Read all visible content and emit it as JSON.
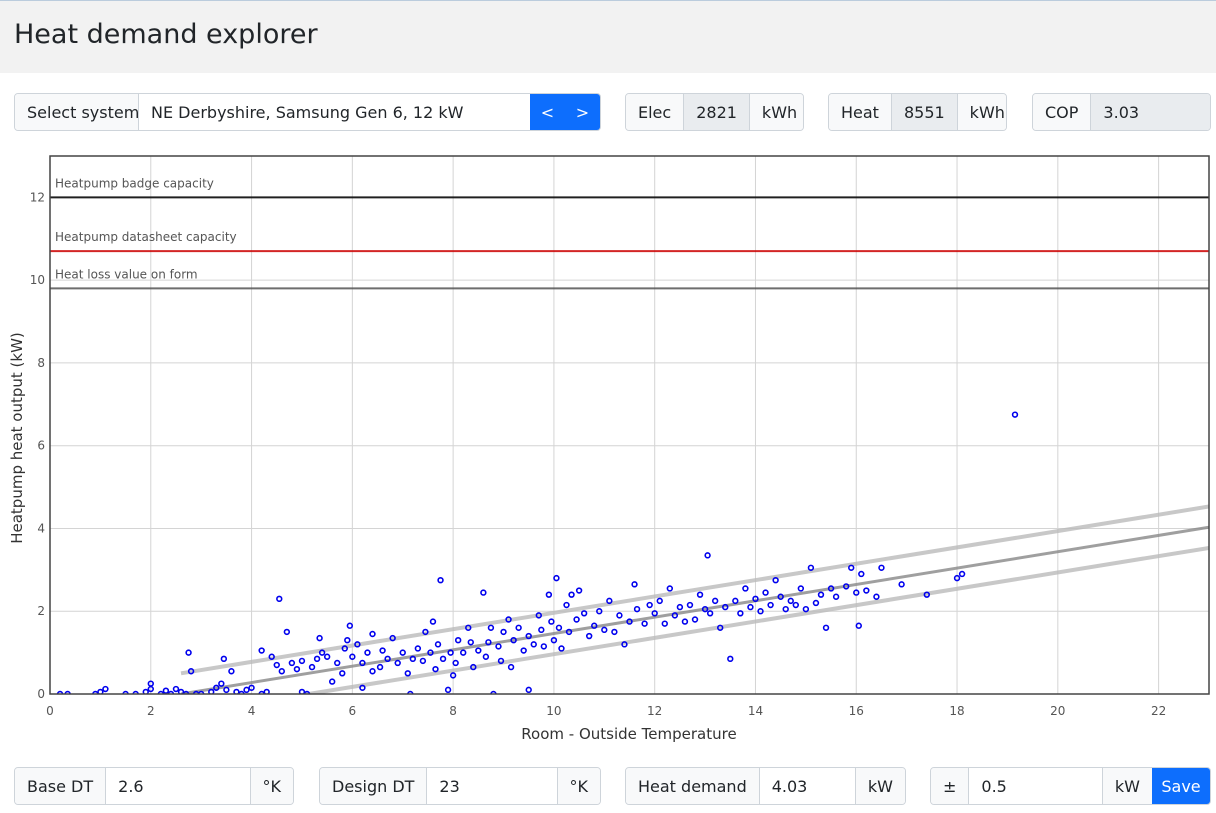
{
  "header": {
    "title": "Heat demand explorer"
  },
  "system": {
    "label": "Select system",
    "value": "NE Derbyshire, Samsung Gen 6, 12 kW",
    "prev": "<",
    "next": ">"
  },
  "stats": {
    "elec_label": "Elec",
    "elec_value": "2821",
    "elec_unit": "kWh",
    "heat_label": "Heat",
    "heat_value": "8551",
    "heat_unit": "kWh",
    "cop_label": "COP",
    "cop_value": "3.03"
  },
  "controls": {
    "base_dt_label": "Base DT",
    "base_dt_value": "2.6",
    "base_dt_unit": "°K",
    "design_dt_label": "Design DT",
    "design_dt_value": "23",
    "design_dt_unit": "°K",
    "heat_demand_label": "Heat demand",
    "heat_demand_value": "4.03",
    "heat_demand_unit": "kW",
    "tolerance_label": "±",
    "tolerance_value": "0.5",
    "tolerance_unit": "kW",
    "save_label": "Save"
  },
  "colors": {
    "accent": "#0d6efd",
    "points": "#0000ee",
    "badge_line": "#000000",
    "datasheet_line": "#cc0000",
    "heatloss_line": "#555555",
    "fit_line": "#888888",
    "band_line": "#bbbbbb"
  },
  "chart_data": {
    "type": "scatter",
    "title": "",
    "xlabel": "Room - Outside Temperature",
    "ylabel": "Heatpump heat output (kW)",
    "xlim": [
      0,
      23
    ],
    "ylim": [
      0,
      13
    ],
    "xticks": [
      0,
      2,
      4,
      6,
      8,
      10,
      12,
      14,
      16,
      18,
      20,
      22
    ],
    "yticks": [
      0,
      2,
      4,
      6,
      8,
      10,
      12
    ],
    "grid": true,
    "reference_lines": [
      {
        "label": "Heatpump badge capacity",
        "y": 12.0,
        "color": "#000000"
      },
      {
        "label": "Heatpump datasheet capacity",
        "y": 10.7,
        "color": "#cc0000"
      },
      {
        "label": "Heat loss value on form",
        "y": 9.8,
        "color": "#555555"
      }
    ],
    "fit_line": {
      "x": [
        2.6,
        23
      ],
      "y": [
        0,
        4.03
      ]
    },
    "band_upper": {
      "x": [
        2.6,
        23
      ],
      "y": [
        0.5,
        4.53
      ]
    },
    "band_lower": {
      "x": [
        2.6,
        23
      ],
      "y": [
        -0.5,
        3.53
      ]
    },
    "points": [
      [
        0.2,
        0.0
      ],
      [
        0.35,
        0.0
      ],
      [
        0.9,
        0.0
      ],
      [
        1.0,
        0.05
      ],
      [
        1.1,
        0.12
      ],
      [
        1.5,
        0.0
      ],
      [
        1.7,
        0.0
      ],
      [
        1.9,
        0.05
      ],
      [
        2.0,
        0.12
      ],
      [
        2.0,
        0.25
      ],
      [
        2.2,
        0.0
      ],
      [
        2.3,
        0.08
      ],
      [
        2.4,
        0.0
      ],
      [
        2.5,
        0.12
      ],
      [
        2.6,
        0.05
      ],
      [
        2.7,
        0.0
      ],
      [
        2.75,
        1.0
      ],
      [
        2.8,
        0.55
      ],
      [
        2.9,
        0.0
      ],
      [
        3.0,
        0.0
      ],
      [
        3.2,
        0.05
      ],
      [
        3.3,
        0.15
      ],
      [
        3.4,
        0.25
      ],
      [
        3.5,
        0.1
      ],
      [
        3.45,
        0.85
      ],
      [
        3.6,
        0.55
      ],
      [
        3.7,
        0.05
      ],
      [
        3.8,
        0.0
      ],
      [
        3.9,
        0.1
      ],
      [
        4.0,
        0.15
      ],
      [
        4.2,
        0.0
      ],
      [
        4.3,
        0.05
      ],
      [
        4.2,
        1.05
      ],
      [
        4.4,
        0.9
      ],
      [
        4.5,
        0.7
      ],
      [
        4.55,
        2.3
      ],
      [
        4.6,
        0.55
      ],
      [
        4.7,
        1.5
      ],
      [
        4.8,
        0.75
      ],
      [
        4.9,
        0.6
      ],
      [
        5.0,
        0.05
      ],
      [
        5.0,
        0.8
      ],
      [
        5.1,
        0.0
      ],
      [
        5.2,
        0.65
      ],
      [
        5.3,
        0.85
      ],
      [
        5.4,
        1.0
      ],
      [
        5.35,
        1.35
      ],
      [
        5.5,
        0.9
      ],
      [
        5.6,
        0.3
      ],
      [
        5.7,
        0.75
      ],
      [
        5.8,
        0.5
      ],
      [
        5.85,
        1.1
      ],
      [
        5.9,
        1.3
      ],
      [
        5.95,
        1.65
      ],
      [
        6.0,
        0.9
      ],
      [
        6.1,
        1.2
      ],
      [
        6.2,
        0.75
      ],
      [
        6.2,
        0.15
      ],
      [
        6.3,
        1.0
      ],
      [
        6.4,
        0.55
      ],
      [
        6.4,
        1.45
      ],
      [
        6.55,
        0.65
      ],
      [
        6.6,
        1.05
      ],
      [
        6.7,
        0.85
      ],
      [
        6.8,
        1.35
      ],
      [
        6.9,
        0.75
      ],
      [
        7.0,
        1.0
      ],
      [
        7.1,
        0.5
      ],
      [
        7.15,
        0.0
      ],
      [
        7.2,
        0.85
      ],
      [
        7.3,
        1.1
      ],
      [
        7.4,
        0.8
      ],
      [
        7.45,
        1.5
      ],
      [
        7.55,
        1.0
      ],
      [
        7.6,
        1.75
      ],
      [
        7.65,
        0.6
      ],
      [
        7.7,
        1.2
      ],
      [
        7.75,
        2.75
      ],
      [
        7.8,
        0.85
      ],
      [
        7.9,
        0.1
      ],
      [
        7.95,
        1.0
      ],
      [
        8.0,
        0.45
      ],
      [
        8.05,
        0.75
      ],
      [
        8.1,
        1.3
      ],
      [
        8.2,
        1.0
      ],
      [
        8.3,
        1.6
      ],
      [
        8.35,
        1.25
      ],
      [
        8.4,
        0.65
      ],
      [
        8.5,
        1.05
      ],
      [
        8.6,
        2.45
      ],
      [
        8.65,
        0.9
      ],
      [
        8.7,
        1.25
      ],
      [
        8.75,
        1.6
      ],
      [
        8.8,
        0.0
      ],
      [
        8.9,
        1.15
      ],
      [
        8.95,
        0.8
      ],
      [
        9.0,
        1.5
      ],
      [
        9.1,
        1.8
      ],
      [
        9.15,
        0.65
      ],
      [
        9.2,
        1.3
      ],
      [
        9.3,
        1.6
      ],
      [
        9.4,
        1.05
      ],
      [
        9.5,
        1.4
      ],
      [
        9.5,
        0.1
      ],
      [
        9.6,
        1.2
      ],
      [
        9.7,
        1.9
      ],
      [
        9.75,
        1.55
      ],
      [
        9.8,
        1.15
      ],
      [
        9.9,
        2.4
      ],
      [
        9.95,
        1.75
      ],
      [
        10.0,
        1.3
      ],
      [
        10.05,
        2.8
      ],
      [
        10.1,
        1.6
      ],
      [
        10.15,
        1.1
      ],
      [
        10.25,
        2.15
      ],
      [
        10.3,
        1.5
      ],
      [
        10.35,
        2.4
      ],
      [
        10.45,
        1.8
      ],
      [
        10.5,
        2.5
      ],
      [
        10.6,
        1.95
      ],
      [
        10.7,
        1.4
      ],
      [
        10.8,
        1.65
      ],
      [
        10.9,
        2.0
      ],
      [
        11.0,
        1.55
      ],
      [
        11.1,
        2.25
      ],
      [
        11.2,
        1.5
      ],
      [
        11.3,
        1.9
      ],
      [
        11.4,
        1.2
      ],
      [
        11.5,
        1.75
      ],
      [
        11.6,
        2.65
      ],
      [
        11.65,
        2.05
      ],
      [
        11.8,
        1.7
      ],
      [
        11.9,
        2.15
      ],
      [
        12.0,
        1.95
      ],
      [
        12.1,
        2.25
      ],
      [
        12.2,
        1.7
      ],
      [
        12.3,
        2.55
      ],
      [
        12.4,
        1.9
      ],
      [
        12.5,
        2.1
      ],
      [
        12.6,
        1.75
      ],
      [
        12.7,
        2.15
      ],
      [
        12.8,
        1.8
      ],
      [
        12.9,
        2.4
      ],
      [
        13.0,
        2.05
      ],
      [
        13.05,
        3.35
      ],
      [
        13.1,
        1.95
      ],
      [
        13.2,
        2.25
      ],
      [
        13.3,
        1.6
      ],
      [
        13.4,
        2.1
      ],
      [
        13.5,
        0.85
      ],
      [
        13.6,
        2.25
      ],
      [
        13.7,
        1.95
      ],
      [
        13.8,
        2.55
      ],
      [
        13.9,
        2.1
      ],
      [
        14.0,
        2.3
      ],
      [
        14.1,
        2.0
      ],
      [
        14.2,
        2.45
      ],
      [
        14.3,
        2.15
      ],
      [
        14.4,
        2.75
      ],
      [
        14.5,
        2.35
      ],
      [
        14.6,
        2.05
      ],
      [
        14.7,
        2.25
      ],
      [
        14.8,
        2.15
      ],
      [
        14.9,
        2.55
      ],
      [
        15.0,
        2.05
      ],
      [
        15.1,
        3.05
      ],
      [
        15.2,
        2.2
      ],
      [
        15.3,
        2.4
      ],
      [
        15.4,
        1.6
      ],
      [
        15.5,
        2.55
      ],
      [
        15.6,
        2.35
      ],
      [
        15.8,
        2.6
      ],
      [
        15.9,
        3.05
      ],
      [
        16.0,
        2.45
      ],
      [
        16.05,
        1.65
      ],
      [
        16.1,
        2.9
      ],
      [
        16.2,
        2.5
      ],
      [
        16.4,
        2.35
      ],
      [
        16.5,
        3.05
      ],
      [
        16.9,
        2.65
      ],
      [
        17.4,
        2.4
      ],
      [
        18.0,
        2.8
      ],
      [
        18.1,
        2.9
      ],
      [
        19.15,
        6.75
      ]
    ]
  }
}
